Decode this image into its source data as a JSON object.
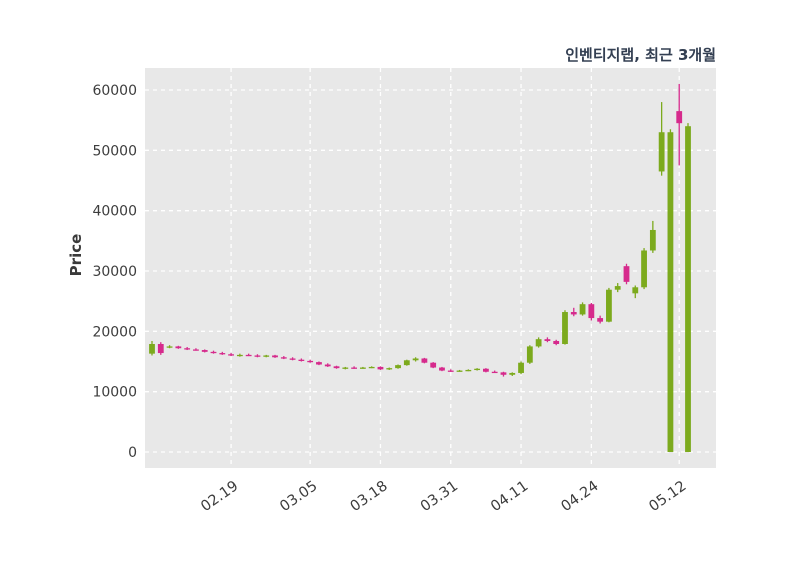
{
  "header": {
    "title": "인벤티지랩, 최근 3개월"
  },
  "chart_data": {
    "type": "candlestick",
    "title": "인벤티지랩, 최근 3개월",
    "xlabel": "",
    "ylabel": "Price",
    "ylim": [
      0,
      63000
    ],
    "yticks": [
      0,
      10000,
      20000,
      30000,
      40000,
      50000,
      60000
    ],
    "grid": "dashed",
    "legend": "none",
    "colors": {
      "up": "#7caa1d",
      "down": "#d62a8c",
      "plot_bg": "#e8e8e8",
      "grid": "#ffffff",
      "title": "#333f52",
      "tick": "#3d3d3d",
      "figure_bg": "#ffffff"
    },
    "xticks": [
      {
        "i": 9,
        "label": "02.19"
      },
      {
        "i": 18,
        "label": "03.05"
      },
      {
        "i": 26,
        "label": "03.18"
      },
      {
        "i": 34,
        "label": "03.31"
      },
      {
        "i": 42,
        "label": "04.11"
      },
      {
        "i": 50,
        "label": "04.24"
      },
      {
        "i": 60,
        "label": "05.12"
      }
    ],
    "candles": [
      [
        16300,
        18400,
        16000,
        17900
      ],
      [
        17900,
        18200,
        16100,
        16400
      ],
      [
        17400,
        17700,
        17200,
        17500
      ],
      [
        17500,
        17600,
        17100,
        17200
      ],
      [
        17200,
        17400,
        16900,
        17000
      ],
      [
        17000,
        17200,
        16800,
        16900
      ],
      [
        16900,
        17000,
        16500,
        16600
      ],
      [
        16600,
        16800,
        16300,
        16400
      ],
      [
        16400,
        16600,
        16100,
        16200
      ],
      [
        16200,
        16400,
        15900,
        16000
      ],
      [
        16000,
        16300,
        15800,
        16100
      ],
      [
        16100,
        16300,
        15900,
        16000
      ],
      [
        16000,
        16200,
        15700,
        15800
      ],
      [
        15800,
        16100,
        15700,
        16000
      ],
      [
        16000,
        16100,
        15600,
        15700
      ],
      [
        15700,
        15900,
        15400,
        15500
      ],
      [
        15500,
        15700,
        15200,
        15300
      ],
      [
        15300,
        15500,
        15000,
        15100
      ],
      [
        15100,
        15300,
        14800,
        14900
      ],
      [
        14900,
        15000,
        14400,
        14500
      ],
      [
        14500,
        14700,
        14100,
        14200
      ],
      [
        14200,
        14300,
        13800,
        13900
      ],
      [
        13900,
        14100,
        13700,
        14000
      ],
      [
        14000,
        14200,
        13800,
        13900
      ],
      [
        13900,
        14100,
        13800,
        14000
      ],
      [
        14000,
        14200,
        13900,
        14100
      ],
      [
        14100,
        14200,
        13600,
        13700
      ],
      [
        13700,
        14000,
        13600,
        13900
      ],
      [
        13900,
        14500,
        13800,
        14400
      ],
      [
        14400,
        15300,
        14300,
        15200
      ],
      [
        15200,
        15700,
        15000,
        15500
      ],
      [
        15500,
        15600,
        14700,
        14800
      ],
      [
        14800,
        14900,
        13900,
        14000
      ],
      [
        14000,
        14100,
        13400,
        13500
      ],
      [
        13500,
        13700,
        13300,
        13400
      ],
      [
        13400,
        13600,
        13300,
        13500
      ],
      [
        13500,
        13700,
        13400,
        13600
      ],
      [
        13600,
        13900,
        13500,
        13800
      ],
      [
        13800,
        13900,
        13200,
        13300
      ],
      [
        13300,
        13500,
        13100,
        13200
      ],
      [
        13200,
        13300,
        12500,
        12800
      ],
      [
        12800,
        13200,
        12600,
        13100
      ],
      [
        13100,
        15000,
        12900,
        14800
      ],
      [
        14800,
        17700,
        14600,
        17500
      ],
      [
        17500,
        19000,
        17300,
        18700
      ],
      [
        18700,
        19000,
        18200,
        18400
      ],
      [
        18400,
        18600,
        17700,
        17900
      ],
      [
        17900,
        23500,
        17800,
        23200
      ],
      [
        23200,
        23900,
        22500,
        22800
      ],
      [
        22800,
        24800,
        22600,
        24500
      ],
      [
        24500,
        24700,
        21800,
        22200
      ],
      [
        22200,
        22600,
        21300,
        21600
      ],
      [
        21600,
        27200,
        21500,
        26900
      ],
      [
        26900,
        28000,
        26500,
        27500
      ],
      [
        30800,
        31200,
        27800,
        28200
      ],
      [
        26300,
        27600,
        25500,
        27300
      ],
      [
        27300,
        33800,
        27000,
        33400
      ],
      [
        33400,
        38300,
        33000,
        36800
      ],
      [
        46500,
        58000,
        45800,
        53000
      ],
      [
        0,
        53500,
        0,
        53000
      ],
      [
        56500,
        61000,
        47500,
        54500
      ],
      [
        0,
        54500,
        0,
        54000
      ]
    ]
  }
}
